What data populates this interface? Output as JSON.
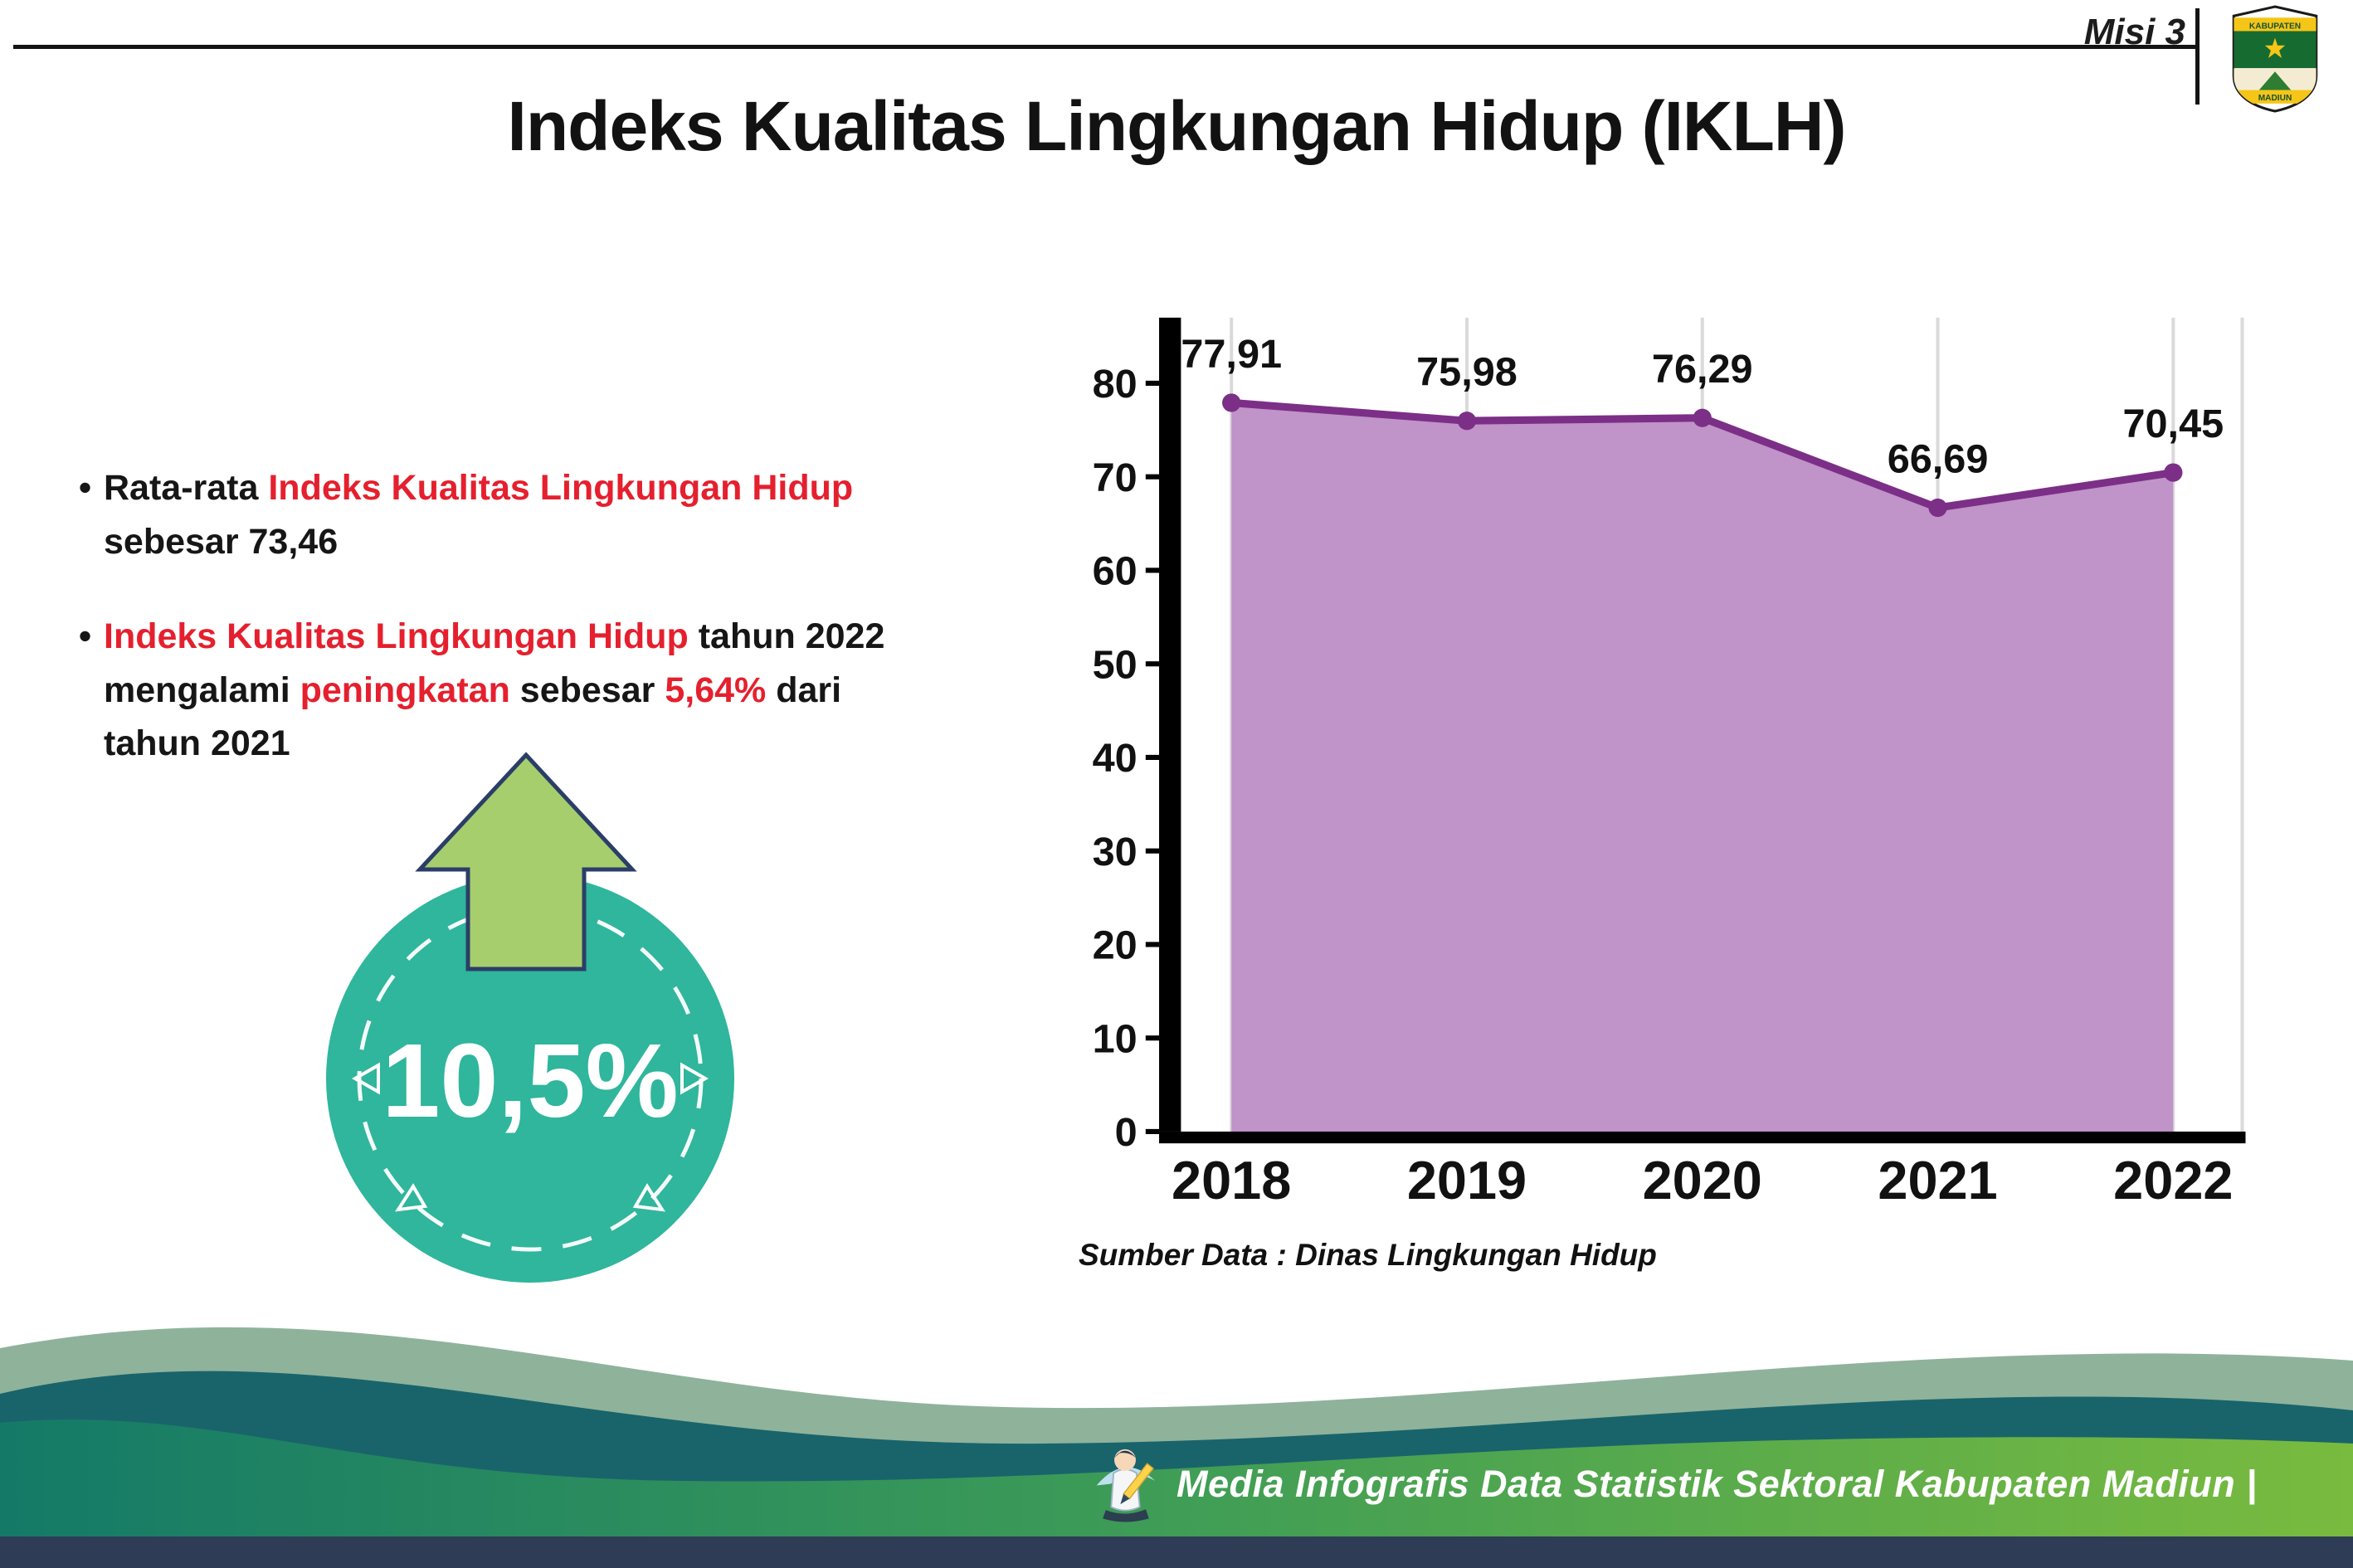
{
  "header": {
    "misi_label": "Misi 3",
    "title": "Indeks Kualitas Lingkungan Hidup (IKLH)"
  },
  "logo": {
    "top_text": "KABUPATEN",
    "bottom_text": "MADIUN"
  },
  "bullets": [
    {
      "lines": [
        {
          "segments": [
            {
              "text": "Rata-rata ",
              "style": "normal"
            },
            {
              "text": "Indeks Kualitas Lingkungan Hidup",
              "style": "red"
            }
          ]
        },
        {
          "segments": [
            {
              "text": "sebesar 73,46",
              "style": "normal"
            }
          ]
        }
      ]
    },
    {
      "lines": [
        {
          "segments": [
            {
              "text": "Indeks Kualitas Lingkungan Hidup",
              "style": "red"
            },
            {
              "text": " tahun 2022",
              "style": "normal"
            }
          ]
        },
        {
          "segments": [
            {
              "text": "mengalami ",
              "style": "normal"
            },
            {
              "text": "peningkatan",
              "style": "red"
            },
            {
              "text": " sebesar ",
              "style": "normal"
            },
            {
              "text": "5,64%",
              "style": "red"
            },
            {
              "text": " dari",
              "style": "normal"
            }
          ]
        },
        {
          "segments": [
            {
              "text": "tahun 2021",
              "style": "normal"
            }
          ]
        }
      ]
    }
  ],
  "highlight_badge": {
    "value": "10,5%",
    "circle_color": "#2fb69c",
    "arrow_color": "#a6ce6d"
  },
  "chart_data": {
    "type": "area",
    "categories": [
      "2018",
      "2019",
      "2020",
      "2021",
      "2022"
    ],
    "values": [
      77.91,
      75.98,
      76.29,
      66.69,
      70.45
    ],
    "value_labels": [
      "77,91",
      "75,98",
      "76,29",
      "66,69",
      "70,45"
    ],
    "title": "",
    "xlabel": "",
    "ylabel": "",
    "ylim": [
      0,
      80
    ],
    "yticks": [
      0,
      10,
      20,
      30,
      40,
      50,
      60,
      70,
      80
    ],
    "grid": "vertical",
    "legend": "none",
    "area_color": "#c093c9",
    "line_color": "#7c2f87",
    "source_note": "Sumber Data : Dinas Lingkungan Hidup"
  },
  "footer": {
    "caption": "Media Infografis Data Statistik Sektoral Kabupaten Madiun |"
  },
  "colors": {
    "accent_red": "#e5202e",
    "footer_navy": "#2e3c55",
    "footer_teal": "#1b7a6b",
    "footer_green": "#79bb3f"
  }
}
